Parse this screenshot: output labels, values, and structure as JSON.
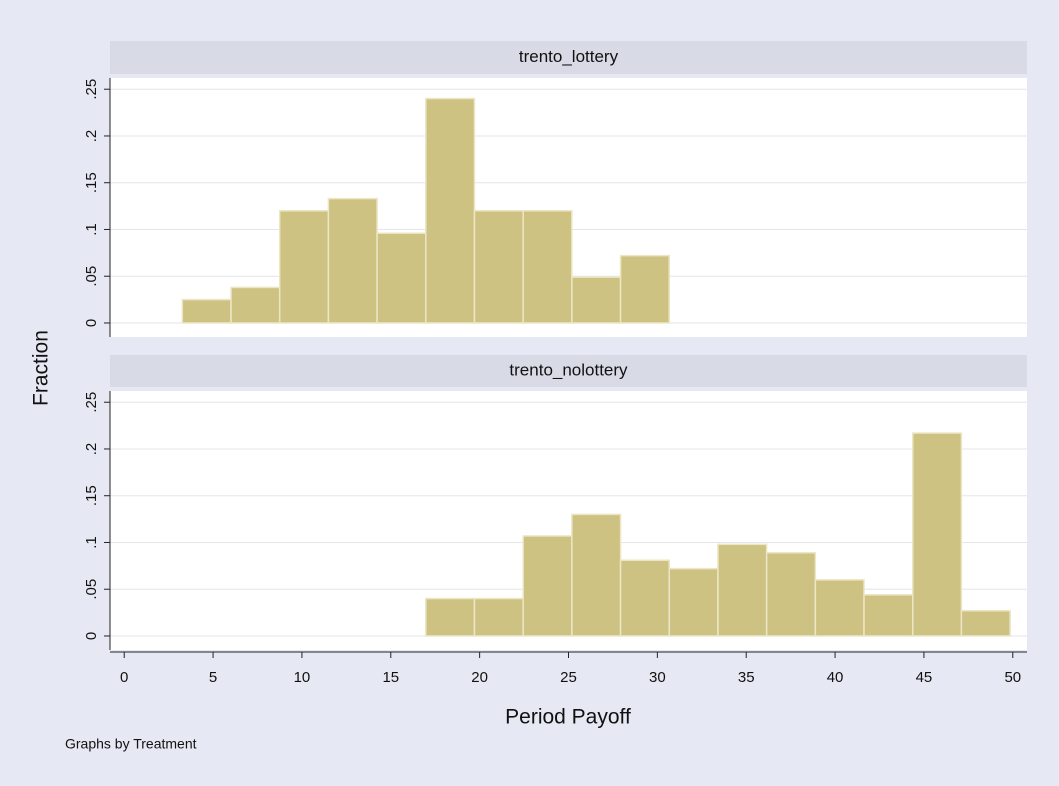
{
  "chart_data": {
    "type": "histogram",
    "ylabel": "Fraction",
    "xlabel": "Period Payoff",
    "note": "Graphs by Treatment",
    "color": "#cdc281",
    "xlim": [
      -0.8,
      50.8
    ],
    "xticks": [
      0,
      5,
      10,
      15,
      20,
      25,
      30,
      35,
      40,
      45,
      50
    ],
    "ylim": [
      -0.015,
      0.262
    ],
    "yticks": [
      0,
      {
        "value": 0.05,
        "label": ".05"
      },
      {
        "value": 0.1,
        "label": ".1"
      },
      {
        "value": 0.15,
        "label": ".15"
      },
      {
        "value": 0.2,
        "label": ".2"
      },
      {
        "value": 0.25,
        "label": ".25"
      }
    ],
    "grid": true,
    "panels": [
      {
        "title": "trento_lottery",
        "bins": [
          3.27,
          6.01,
          8.75,
          11.49,
          14.23,
          16.97,
          19.71,
          22.45,
          25.19,
          27.93,
          30.67
        ],
        "values": [
          0.025,
          0.038,
          0.12,
          0.133,
          0.096,
          0.24,
          0.12,
          0.12,
          0.049,
          0.072
        ]
      },
      {
        "title": "trento_nolottery",
        "bins": [
          16.97,
          19.71,
          22.45,
          25.19,
          27.93,
          30.67,
          33.41,
          36.15,
          38.89,
          41.63,
          44.37,
          47.11,
          49.85
        ],
        "values": [
          0.04,
          0.04,
          0.107,
          0.13,
          0.081,
          0.072,
          0.098,
          0.089,
          0.06,
          0.044,
          0.217,
          0.027
        ]
      }
    ]
  }
}
